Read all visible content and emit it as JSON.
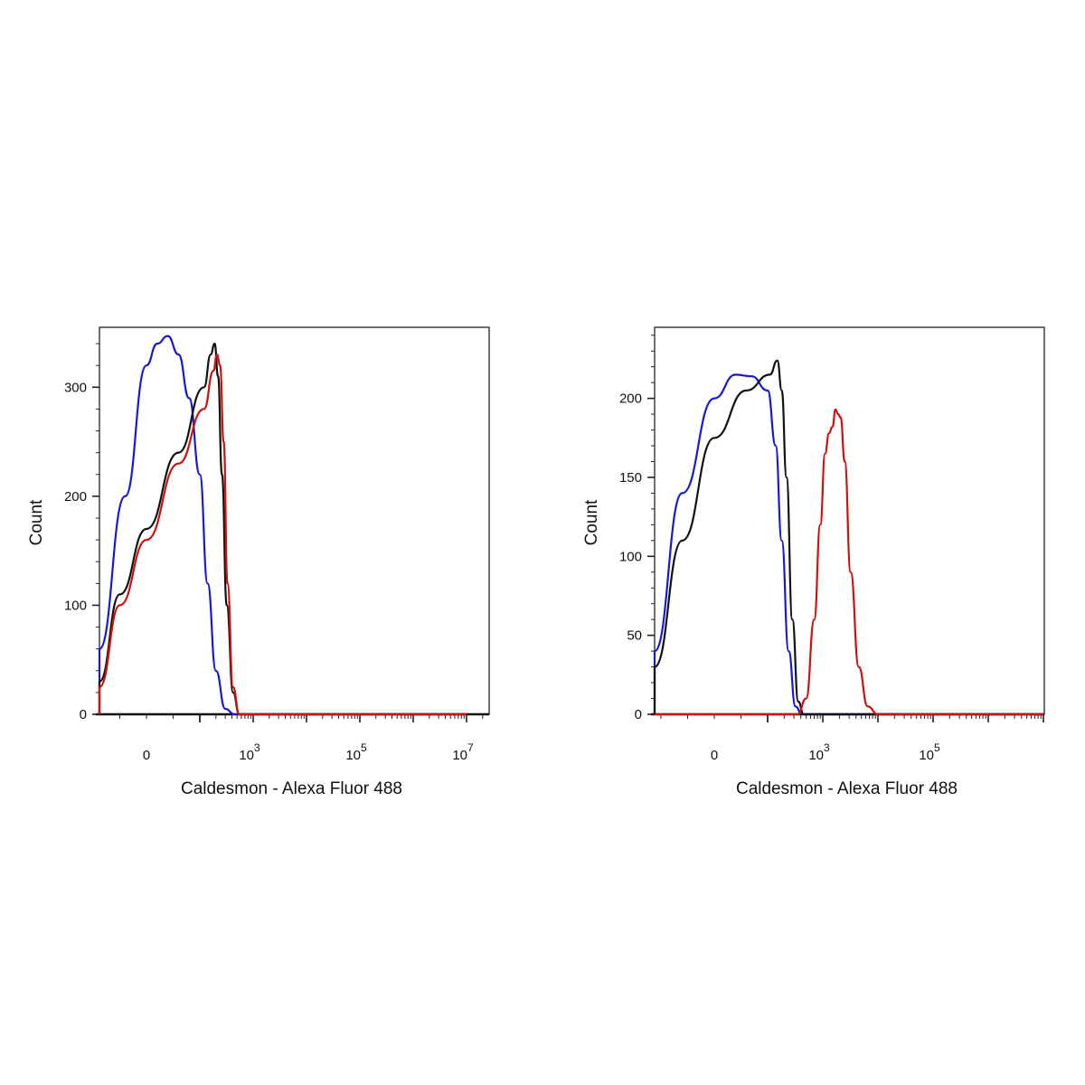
{
  "chart_data": [
    {
      "type": "line",
      "xlabel": "Caldesmon - Alexa Fluor 488",
      "ylabel": "Count",
      "x_scale": "biexponential",
      "xlim": [
        -600,
        10000000
      ],
      "ylim": [
        0,
        355
      ],
      "x_ticks": [
        {
          "value": 0,
          "base": "0",
          "exp": ""
        },
        {
          "value": 1000,
          "base": "10",
          "exp": "3"
        },
        {
          "value": 100000,
          "base": "10",
          "exp": "5"
        },
        {
          "value": 10000000,
          "base": "10",
          "exp": "7"
        }
      ],
      "y_ticks": [
        0,
        100,
        200,
        300
      ],
      "grid": false,
      "legend": "none",
      "series": [
        {
          "color": "#1a1acc",
          "x": [
            -700,
            -250,
            -100,
            -40,
            0,
            20,
            40,
            60,
            80,
            100,
            140,
            200,
            300,
            450,
            10000000
          ],
          "y": [
            0,
            5,
            60,
            200,
            320,
            340,
            347,
            330,
            290,
            220,
            120,
            40,
            5,
            0,
            0
          ]
        },
        {
          "color": "#111111",
          "x": [
            -700,
            -300,
            -150,
            -50,
            0,
            60,
            120,
            160,
            190,
            220,
            260,
            320,
            420,
            550,
            10000000
          ],
          "y": [
            0,
            3,
            30,
            110,
            170,
            240,
            300,
            330,
            340,
            310,
            220,
            100,
            20,
            0,
            0
          ]
        },
        {
          "color": "#cc1111",
          "x": [
            -700,
            -300,
            -150,
            -50,
            0,
            60,
            120,
            180,
            210,
            240,
            280,
            330,
            420,
            550,
            10000000
          ],
          "y": [
            0,
            3,
            25,
            100,
            160,
            230,
            280,
            315,
            330,
            320,
            250,
            120,
            25,
            0,
            0
          ]
        }
      ]
    },
    {
      "type": "line",
      "xlabel": "Caldesmon - Alexa Fluor 488",
      "ylabel": "Count",
      "x_scale": "biexponential",
      "xlim": [
        -600,
        10000000
      ],
      "ylim": [
        0,
        245
      ],
      "x_ticks": [
        {
          "value": 0,
          "base": "0",
          "exp": ""
        },
        {
          "value": 1000,
          "base": "10",
          "exp": "3"
        },
        {
          "value": 100000,
          "base": "10",
          "exp": "5"
        }
      ],
      "y_ticks": [
        0,
        50,
        100,
        150,
        200
      ],
      "grid": false,
      "legend": "none",
      "series": [
        {
          "color": "#1a1acc",
          "x": [
            -700,
            -250,
            -120,
            -60,
            0,
            40,
            70,
            100,
            140,
            180,
            240,
            320,
            420,
            10000000
          ],
          "y": [
            0,
            3,
            40,
            140,
            200,
            215,
            214,
            205,
            170,
            110,
            40,
            5,
            0,
            0
          ]
        },
        {
          "color": "#111111",
          "x": [
            -700,
            -250,
            -120,
            -60,
            0,
            60,
            110,
            150,
            180,
            220,
            280,
            360,
            450,
            10000000
          ],
          "y": [
            0,
            2,
            30,
            110,
            175,
            205,
            215,
            224,
            205,
            150,
            60,
            8,
            0,
            0
          ]
        },
        {
          "color": "#cc1111",
          "x": [
            -700,
            350,
            500,
            700,
            900,
            1100,
            1300,
            1500,
            1700,
            1900,
            2100,
            2500,
            3200,
            4500,
            6500,
            10000,
            10000000
          ],
          "y": [
            0,
            0,
            10,
            60,
            120,
            165,
            178,
            182,
            193,
            190,
            188,
            160,
            90,
            30,
            5,
            0,
            0
          ]
        }
      ]
    }
  ]
}
